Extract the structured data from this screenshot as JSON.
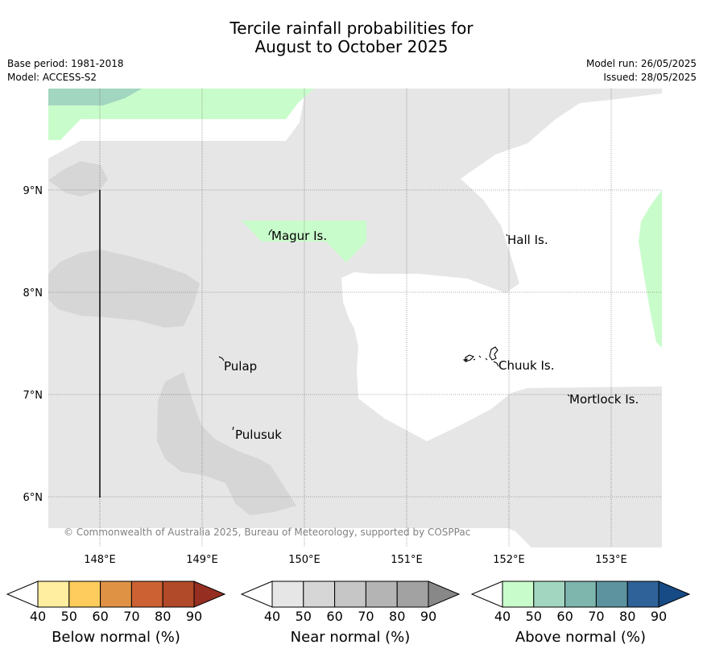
{
  "title": {
    "line1": "Tercile rainfall probabilities for",
    "line2": "August to October 2025"
  },
  "header": {
    "base_period": "Base period: 1981-2018",
    "model": "Model: ACCESS-S2",
    "model_run": "Model run: 26/05/2025",
    "issued": "Issued: 28/05/2025"
  },
  "map": {
    "lat_ticks": [
      "9°N",
      "8°N",
      "7°N",
      "6°N"
    ],
    "lon_ticks": [
      "148°E",
      "149°E",
      "150°E",
      "151°E",
      "152°E",
      "153°E"
    ],
    "places": [
      {
        "name": "Magur Is."
      },
      {
        "name": "Hall Is."
      },
      {
        "name": "Pulap"
      },
      {
        "name": "Chuuk Is."
      },
      {
        "name": "Mortlock Is."
      },
      {
        "name": "Pulusuk"
      }
    ],
    "copyright": "© Commonwealth of Australia 2025, Bureau of Meteorology, supported by COSPPac",
    "colors": {
      "near_40": "#e6e6e6",
      "near_50": "#d6d6d6",
      "above_40": "#c9fccb",
      "above_50": "#a2d6c1"
    }
  },
  "legend": {
    "ticks": [
      "40",
      "50",
      "60",
      "70",
      "80",
      "90"
    ],
    "bars": [
      {
        "label": "Below normal (%)",
        "colors": [
          "#ffeda0",
          "#fecc5c",
          "#e09244",
          "#cc6233",
          "#b04a28"
        ],
        "arrow": "#962e22"
      },
      {
        "label": "Near normal (%)",
        "colors": [
          "#e6e6e6",
          "#d6d6d6",
          "#c6c6c6",
          "#b4b4b4",
          "#a2a2a2"
        ],
        "arrow": "#888888"
      },
      {
        "label": "Above normal (%)",
        "colors": [
          "#c9fccb",
          "#a2d6c1",
          "#7eb5ad",
          "#5c939f",
          "#2f6298"
        ],
        "arrow": "#174b86"
      }
    ]
  }
}
